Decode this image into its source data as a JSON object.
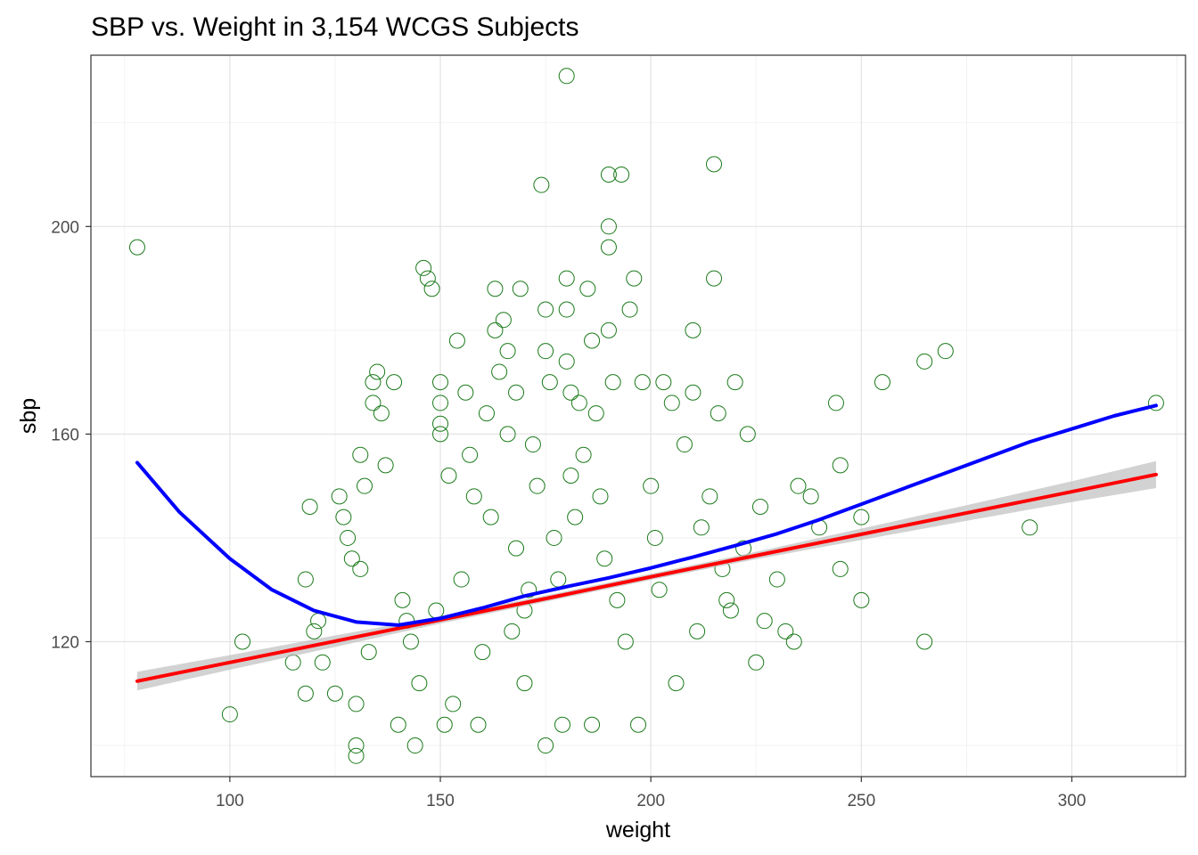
{
  "chart_data": {
    "type": "scatter",
    "title": "SBP vs. Weight in 3,154 WCGS Subjects",
    "xlabel": "weight",
    "ylabel": "sbp",
    "xlim": [
      67,
      327
    ],
    "ylim": [
      94,
      233
    ],
    "x_ticks": [
      100,
      150,
      200,
      250,
      300
    ],
    "y_ticks": [
      120,
      160,
      200
    ],
    "grid": true,
    "point_style": {
      "shape": "open-circle",
      "color": "#1a7a1a"
    },
    "series": [
      {
        "type": "scatter",
        "points": [
          [
            78,
            196
          ],
          [
            100,
            106
          ],
          [
            103,
            120
          ],
          [
            115,
            116
          ],
          [
            118,
            110
          ],
          [
            118,
            132
          ],
          [
            119,
            146
          ],
          [
            120,
            122
          ],
          [
            121,
            124
          ],
          [
            122,
            116
          ],
          [
            125,
            110
          ],
          [
            126,
            148
          ],
          [
            127,
            144
          ],
          [
            128,
            140
          ],
          [
            129,
            136
          ],
          [
            130,
            108
          ],
          [
            130,
            100
          ],
          [
            130,
            98
          ],
          [
            131,
            134
          ],
          [
            131,
            156
          ],
          [
            132,
            150
          ],
          [
            133,
            118
          ],
          [
            134,
            170
          ],
          [
            134,
            166
          ],
          [
            135,
            172
          ],
          [
            136,
            164
          ],
          [
            137,
            154
          ],
          [
            139,
            170
          ],
          [
            140,
            104
          ],
          [
            141,
            128
          ],
          [
            142,
            124
          ],
          [
            143,
            120
          ],
          [
            144,
            100
          ],
          [
            145,
            112
          ],
          [
            146,
            192
          ],
          [
            147,
            190
          ],
          [
            148,
            188
          ],
          [
            149,
            126
          ],
          [
            150,
            170
          ],
          [
            150,
            166
          ],
          [
            150,
            162
          ],
          [
            150,
            160
          ],
          [
            151,
            104
          ],
          [
            152,
            152
          ],
          [
            153,
            108
          ],
          [
            154,
            178
          ],
          [
            155,
            132
          ],
          [
            156,
            168
          ],
          [
            157,
            156
          ],
          [
            158,
            148
          ],
          [
            159,
            104
          ],
          [
            160,
            118
          ],
          [
            161,
            164
          ],
          [
            162,
            144
          ],
          [
            163,
            180
          ],
          [
            163,
            188
          ],
          [
            164,
            172
          ],
          [
            165,
            182
          ],
          [
            166,
            176
          ],
          [
            166,
            160
          ],
          [
            167,
            122
          ],
          [
            168,
            168
          ],
          [
            168,
            138
          ],
          [
            169,
            188
          ],
          [
            170,
            126
          ],
          [
            170,
            112
          ],
          [
            171,
            130
          ],
          [
            172,
            158
          ],
          [
            173,
            150
          ],
          [
            174,
            208
          ],
          [
            175,
            184
          ],
          [
            175,
            176
          ],
          [
            175,
            100
          ],
          [
            176,
            170
          ],
          [
            177,
            140
          ],
          [
            178,
            132
          ],
          [
            179,
            104
          ],
          [
            180,
            229
          ],
          [
            180,
            190
          ],
          [
            180,
            184
          ],
          [
            180,
            174
          ],
          [
            181,
            168
          ],
          [
            181,
            152
          ],
          [
            182,
            144
          ],
          [
            183,
            166
          ],
          [
            184,
            156
          ],
          [
            185,
            188
          ],
          [
            186,
            178
          ],
          [
            186,
            104
          ],
          [
            187,
            164
          ],
          [
            188,
            148
          ],
          [
            189,
            136
          ],
          [
            190,
            210
          ],
          [
            190,
            200
          ],
          [
            190,
            196
          ],
          [
            190,
            180
          ],
          [
            191,
            170
          ],
          [
            192,
            128
          ],
          [
            193,
            210
          ],
          [
            194,
            120
          ],
          [
            195,
            184
          ],
          [
            196,
            190
          ],
          [
            197,
            104
          ],
          [
            198,
            170
          ],
          [
            200,
            150
          ],
          [
            201,
            140
          ],
          [
            202,
            130
          ],
          [
            203,
            170
          ],
          [
            205,
            166
          ],
          [
            206,
            112
          ],
          [
            208,
            158
          ],
          [
            210,
            180
          ],
          [
            210,
            168
          ],
          [
            211,
            122
          ],
          [
            212,
            142
          ],
          [
            214,
            148
          ],
          [
            215,
            212
          ],
          [
            215,
            190
          ],
          [
            216,
            164
          ],
          [
            217,
            134
          ],
          [
            218,
            128
          ],
          [
            219,
            126
          ],
          [
            220,
            170
          ],
          [
            222,
            138
          ],
          [
            223,
            160
          ],
          [
            225,
            116
          ],
          [
            226,
            146
          ],
          [
            227,
            124
          ],
          [
            230,
            132
          ],
          [
            232,
            122
          ],
          [
            234,
            120
          ],
          [
            235,
            150
          ],
          [
            238,
            148
          ],
          [
            240,
            142
          ],
          [
            244,
            166
          ],
          [
            245,
            154
          ],
          [
            245,
            134
          ],
          [
            250,
            144
          ],
          [
            250,
            128
          ],
          [
            255,
            170
          ],
          [
            265,
            174
          ],
          [
            265,
            120
          ],
          [
            270,
            176
          ],
          [
            290,
            142
          ],
          [
            320,
            166
          ]
        ]
      },
      {
        "type": "line",
        "color": "#ff0000",
        "points": [
          [
            78,
            112.4
          ],
          [
            100,
            116.0
          ],
          [
            125,
            120.1
          ],
          [
            150,
            124.2
          ],
          [
            175,
            128.3
          ],
          [
            200,
            132.5
          ],
          [
            225,
            136.6
          ],
          [
            250,
            140.7
          ],
          [
            275,
            144.8
          ],
          [
            300,
            148.9
          ],
          [
            320,
            152.2
          ]
        ]
      },
      {
        "type": "band",
        "color": "#bfbfbf",
        "points": [
          [
            78,
            110.6,
            114.2
          ],
          [
            100,
            114.6,
            117.4
          ],
          [
            125,
            119.0,
            121.2
          ],
          [
            150,
            123.5,
            124.9
          ],
          [
            175,
            127.7,
            128.9
          ],
          [
            200,
            131.9,
            133.1
          ],
          [
            225,
            135.9,
            137.3
          ],
          [
            250,
            139.6,
            141.8
          ],
          [
            275,
            143.3,
            146.3
          ],
          [
            300,
            146.9,
            150.9
          ],
          [
            320,
            149.6,
            154.8
          ]
        ]
      },
      {
        "type": "line",
        "color": "#0000ff",
        "points": [
          [
            78,
            154.5
          ],
          [
            88,
            145.0
          ],
          [
            100,
            136.0
          ],
          [
            110,
            130.0
          ],
          [
            120,
            126.0
          ],
          [
            130,
            123.8
          ],
          [
            140,
            123.2
          ],
          [
            150,
            124.5
          ],
          [
            160,
            126.5
          ],
          [
            170,
            128.8
          ],
          [
            180,
            130.6
          ],
          [
            190,
            132.3
          ],
          [
            200,
            134.2
          ],
          [
            210,
            136.3
          ],
          [
            220,
            138.5
          ],
          [
            230,
            140.8
          ],
          [
            240,
            143.5
          ],
          [
            250,
            146.5
          ],
          [
            260,
            149.5
          ],
          [
            270,
            152.5
          ],
          [
            280,
            155.5
          ],
          [
            290,
            158.5
          ],
          [
            300,
            161.0
          ],
          [
            310,
            163.5
          ],
          [
            320,
            165.5
          ]
        ]
      }
    ]
  }
}
